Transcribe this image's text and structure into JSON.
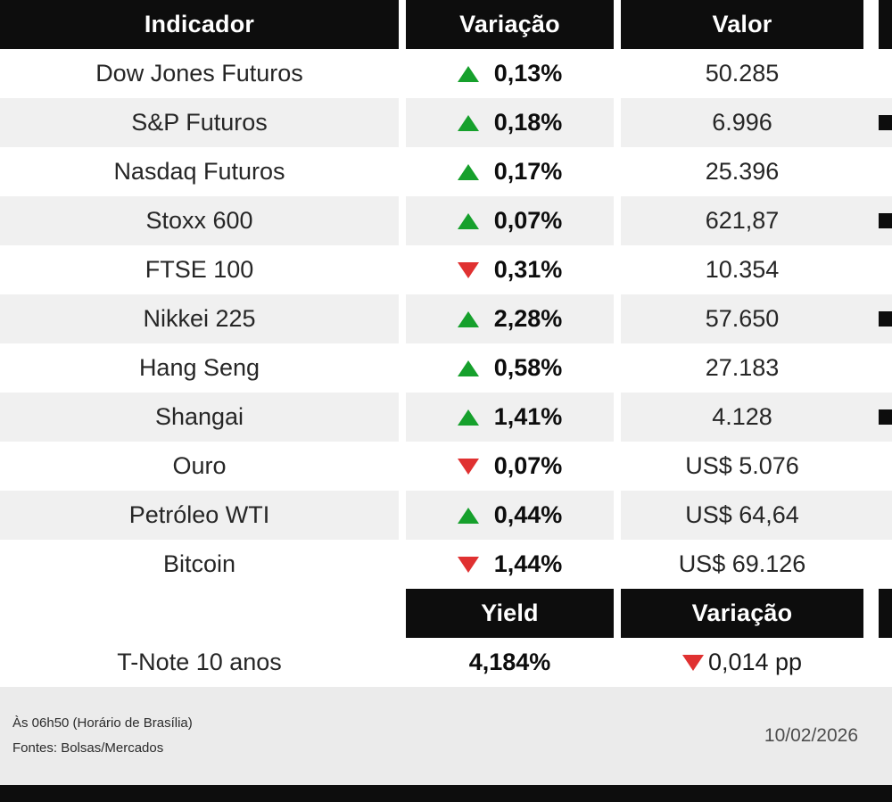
{
  "chart_data": {
    "type": "table",
    "columns": [
      "Indicador",
      "Variação",
      "Valor"
    ],
    "rows": [
      {
        "indicator": "Dow Jones Futuros",
        "direction": "up",
        "variation": "0,13%",
        "value": "50.285",
        "edge_mark": false
      },
      {
        "indicator": "S&P Futuros",
        "direction": "up",
        "variation": "0,18%",
        "value": "6.996",
        "edge_mark": true
      },
      {
        "indicator": "Nasdaq Futuros",
        "direction": "up",
        "variation": "0,17%",
        "value": "25.396",
        "edge_mark": false
      },
      {
        "indicator": "Stoxx 600",
        "direction": "up",
        "variation": "0,07%",
        "value": "621,87",
        "edge_mark": true
      },
      {
        "indicator": "FTSE 100",
        "direction": "down",
        "variation": "0,31%",
        "value": "10.354",
        "edge_mark": false
      },
      {
        "indicator": "Nikkei 225",
        "direction": "up",
        "variation": "2,28%",
        "value": "57.650",
        "edge_mark": true
      },
      {
        "indicator": "Hang Seng",
        "direction": "up",
        "variation": "0,58%",
        "value": "27.183",
        "edge_mark": false
      },
      {
        "indicator": "Shangai",
        "direction": "up",
        "variation": "1,41%",
        "value": "4.128",
        "edge_mark": true
      },
      {
        "indicator": "Ouro",
        "direction": "down",
        "variation": "0,07%",
        "value": "US$ 5.076",
        "edge_mark": false
      },
      {
        "indicator": "Petróleo WTI",
        "direction": "up",
        "variation": "0,44%",
        "value": "US$ 64,64",
        "edge_mark": false
      },
      {
        "indicator": "Bitcoin",
        "direction": "down",
        "variation": "1,44%",
        "value": "US$ 69.126",
        "edge_mark": false
      }
    ],
    "bond_table": {
      "columns": [
        "Yield",
        "Variação"
      ],
      "row": {
        "indicator": "T-Note 10 anos",
        "yield": "4,184%",
        "direction": "down",
        "variation": "0,014 pp"
      }
    }
  },
  "footer": {
    "time_note": "Às 06h50 (Horário de Brasília)",
    "sources": "Fontes: Bolsas/Mercados",
    "date": "10/02/2026"
  },
  "colors": {
    "positive": "#16a02c",
    "negative": "#e03131",
    "header_bg": "#0d0d0d",
    "stripe": "#f0f0f0",
    "footer_bg": "#ebebeb"
  }
}
